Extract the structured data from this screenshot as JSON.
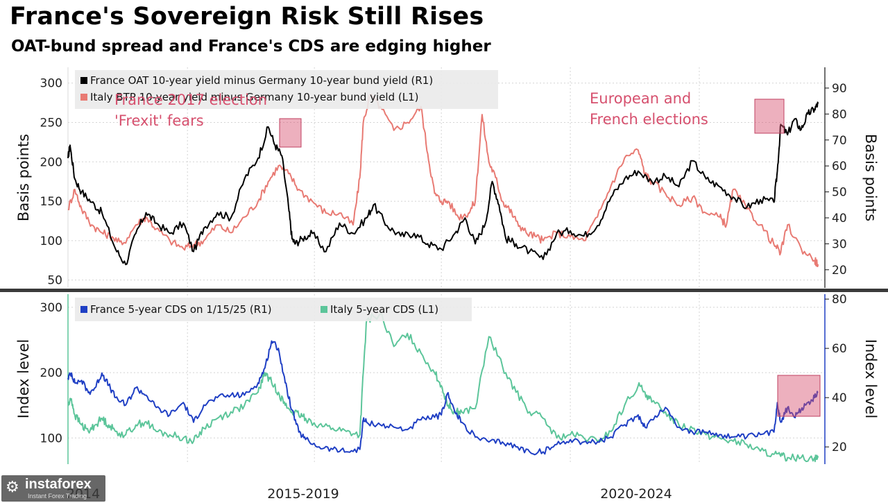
{
  "header": {
    "title": "France's Sovereign Risk Still Rises",
    "subtitle": "OAT-bund spread and France's CDS are edging higher"
  },
  "watermark": {
    "brand": "instaforex",
    "tagline": "Instant Forex Trading"
  },
  "chart_data": [
    {
      "type": "line",
      "panel": "top",
      "left_axis": {
        "label": "Basis points",
        "range": [
          40,
          320
        ],
        "ticks": [
          50,
          100,
          150,
          200,
          250,
          300
        ]
      },
      "right_axis": {
        "label": "Basis points",
        "range": [
          13,
          98
        ],
        "ticks": [
          20,
          30,
          40,
          50,
          60,
          70,
          80,
          90
        ]
      },
      "legend": [
        {
          "text": "France OAT 10-year yield minus Germany 10-year bund yield (R1)",
          "color": "#000000"
        },
        {
          "text": "Italy BTP 10-year yield minus Germany 10-year bund yield (L1)",
          "color": "#e87a73"
        }
      ],
      "annotations": [
        {
          "lines": [
            "France 2017 election",
            "'Frexit' fears"
          ],
          "color": "#d6506e"
        },
        {
          "lines": [
            "European and",
            "French elections"
          ],
          "color": "#d6506e"
        }
      ],
      "series": [
        {
          "name": "France OAT 10-year yield minus Germany 10-year bund yield (R1)",
          "axis": "right",
          "color": "#000000",
          "x": [
            2014.0,
            2014.03,
            2014.1,
            2014.2,
            2014.35,
            2014.5,
            2014.7,
            2014.85,
            2015.0,
            2015.15,
            2015.3,
            2015.5,
            2015.7,
            2015.85,
            2016.0,
            2016.2,
            2016.4,
            2016.6,
            2016.8,
            2016.95,
            2017.05,
            2017.15,
            2017.25,
            2017.3,
            2017.35,
            2017.45,
            2017.6,
            2017.8,
            2018.0,
            2018.2,
            2018.4,
            2018.5,
            2018.7,
            2018.9,
            2019.1,
            2019.3,
            2019.5,
            2019.7,
            2019.85,
            2020.0,
            2020.15,
            2020.25,
            2020.35,
            2020.45,
            2020.6,
            2020.8,
            2021.0,
            2021.2,
            2021.4,
            2021.6,
            2021.8,
            2022.0,
            2022.2,
            2022.4,
            2022.6,
            2022.8,
            2023.0,
            2023.2,
            2023.4,
            2023.6,
            2023.8,
            2024.0,
            2024.2,
            2024.4,
            2024.45,
            2024.5,
            2024.6,
            2024.7,
            2024.8,
            2024.9,
            2025.0,
            2025.05
          ],
          "y": [
            63,
            68,
            55,
            50,
            46,
            42,
            28,
            22,
            34,
            42,
            38,
            34,
            38,
            27,
            36,
            42,
            40,
            55,
            63,
            75,
            68,
            64,
            44,
            32,
            30,
            32,
            34,
            27,
            38,
            34,
            40,
            45,
            37,
            33,
            34,
            30,
            28,
            34,
            40,
            30,
            38,
            54,
            45,
            32,
            30,
            27,
            24,
            34,
            35,
            33,
            37,
            48,
            55,
            58,
            54,
            56,
            52,
            62,
            55,
            52,
            48,
            44,
            47,
            46,
            58,
            76,
            72,
            78,
            74,
            80,
            82,
            84
          ]
        },
        {
          "name": "Italy BTP 10-year yield minus Germany 10-year bund yield (L1)",
          "axis": "left",
          "color": "#e87a73",
          "x": [
            2014.0,
            2014.1,
            2014.2,
            2014.35,
            2014.5,
            2014.65,
            2014.8,
            2015.0,
            2015.15,
            2015.3,
            2015.5,
            2015.7,
            2015.85,
            2016.0,
            2016.2,
            2016.4,
            2016.6,
            2016.8,
            2016.95,
            2017.1,
            2017.25,
            2017.4,
            2017.6,
            2017.8,
            2018.0,
            2018.2,
            2018.3,
            2018.35,
            2018.45,
            2018.6,
            2018.8,
            2019.0,
            2019.2,
            2019.3,
            2019.4,
            2019.5,
            2019.6,
            2019.75,
            2019.9,
            2020.0,
            2020.1,
            2020.2,
            2020.3,
            2020.4,
            2020.5,
            2020.6,
            2020.75,
            2020.9,
            2021.0,
            2021.2,
            2021.4,
            2021.6,
            2021.8,
            2022.0,
            2022.2,
            2022.4,
            2022.5,
            2022.6,
            2022.8,
            2023.0,
            2023.2,
            2023.4,
            2023.6,
            2023.7,
            2023.8,
            2024.0,
            2024.2,
            2024.4,
            2024.5,
            2024.6,
            2024.8,
            2025.0,
            2025.05
          ],
          "y": [
            140,
            165,
            140,
            120,
            110,
            105,
            95,
            120,
            130,
            115,
            100,
            90,
            95,
            100,
            120,
            110,
            130,
            150,
            175,
            195,
            185,
            165,
            150,
            135,
            135,
            120,
            180,
            250,
            285,
            270,
            240,
            250,
            270,
            210,
            160,
            150,
            150,
            130,
            135,
            150,
            260,
            200,
            180,
            150,
            140,
            125,
            110,
            105,
            100,
            110,
            105,
            100,
            130,
            170,
            205,
            215,
            185,
            175,
            160,
            145,
            155,
            135,
            130,
            120,
            165,
            140,
            120,
            95,
            85,
            120,
            90,
            75,
            70
          ]
        }
      ]
    },
    {
      "type": "line",
      "panel": "bottom",
      "left_axis": {
        "label": "Index level",
        "range": [
          60,
          320
        ],
        "ticks": [
          100,
          200,
          300
        ]
      },
      "right_axis": {
        "label": "Index level",
        "range": [
          13,
          82
        ],
        "ticks": [
          20,
          40,
          60,
          80
        ]
      },
      "x_axis": {
        "labels": [
          "2014",
          "2015-2019",
          "2020-2024"
        ]
      },
      "legend": [
        {
          "text": "France 5-year CDS on 1/15/25 (R1)",
          "color": "#1f3fc4"
        },
        {
          "text": "Italy 5-year CDS (L1)",
          "color": "#5cc59a"
        }
      ],
      "series": [
        {
          "name": "France 5-year CDS on 1/15/25 (R1)",
          "axis": "right",
          "color": "#1f3fc4",
          "x": [
            2014.0,
            2014.05,
            2014.1,
            2014.2,
            2014.3,
            2014.4,
            2014.5,
            2014.6,
            2014.7,
            2014.85,
            2015.0,
            2015.15,
            2015.3,
            2015.5,
            2015.7,
            2015.85,
            2016.0,
            2016.2,
            2016.4,
            2016.6,
            2016.8,
            2016.9,
            2017.0,
            2017.1,
            2017.2,
            2017.3,
            2017.4,
            2017.5,
            2017.7,
            2017.9,
            2018.1,
            2018.3,
            2018.35,
            2018.4,
            2018.6,
            2018.8,
            2019.0,
            2019.2,
            2019.4,
            2019.5,
            2019.6,
            2019.7,
            2019.8,
            2020.0,
            2020.2,
            2020.4,
            2020.6,
            2020.8,
            2021.0,
            2021.2,
            2021.4,
            2021.6,
            2021.8,
            2022.0,
            2022.2,
            2022.4,
            2022.5,
            2022.6,
            2022.8,
            2023.0,
            2023.2,
            2023.4,
            2023.6,
            2023.8,
            2024.0,
            2024.2,
            2024.4,
            2024.45,
            2024.5,
            2024.6,
            2024.7,
            2024.8,
            2024.9,
            2025.0,
            2025.05
          ],
          "y": [
            48,
            50,
            46,
            47,
            42,
            44,
            50,
            45,
            40,
            37,
            44,
            41,
            36,
            33,
            38,
            30,
            37,
            40,
            41,
            41,
            46,
            52,
            63,
            60,
            46,
            35,
            26,
            23,
            20,
            19,
            18,
            19,
            31,
            30,
            29,
            28,
            27,
            31,
            32,
            33,
            42,
            34,
            30,
            24,
            22,
            22,
            20,
            18,
            18,
            21,
            23,
            22,
            22,
            24,
            29,
            33,
            28,
            31,
            36,
            28,
            26,
            26,
            25,
            24,
            24,
            25,
            26,
            38,
            30,
            36,
            32,
            35,
            38,
            40,
            42
          ]
        },
        {
          "name": "Italy 5-year CDS (L1)",
          "axis": "left",
          "color": "#5cc59a",
          "x": [
            2014.0,
            2014.05,
            2014.1,
            2014.2,
            2014.3,
            2014.4,
            2014.5,
            2014.6,
            2014.7,
            2014.85,
            2015.0,
            2015.15,
            2015.3,
            2015.5,
            2015.7,
            2015.85,
            2016.0,
            2016.2,
            2016.4,
            2016.6,
            2016.8,
            2016.9,
            2017.0,
            2017.1,
            2017.2,
            2017.3,
            2017.4,
            2017.5,
            2017.7,
            2017.9,
            2018.1,
            2018.3,
            2018.35,
            2018.4,
            2018.6,
            2018.8,
            2019.0,
            2019.2,
            2019.4,
            2019.5,
            2019.6,
            2019.7,
            2019.8,
            2020.0,
            2020.2,
            2020.4,
            2020.6,
            2020.8,
            2021.0,
            2021.2,
            2021.4,
            2021.6,
            2021.8,
            2022.0,
            2022.2,
            2022.4,
            2022.5,
            2022.6,
            2022.8,
            2023.0,
            2023.2,
            2023.4,
            2023.6,
            2023.8,
            2024.0,
            2024.2,
            2024.4,
            2024.5,
            2024.6,
            2024.8,
            2025.0,
            2025.05
          ],
          "y": [
            150,
            160,
            135,
            120,
            110,
            120,
            130,
            120,
            110,
            105,
            120,
            125,
            110,
            105,
            100,
            95,
            115,
            130,
            140,
            150,
            170,
            200,
            185,
            170,
            150,
            140,
            135,
            130,
            120,
            115,
            110,
            105,
            200,
            280,
            290,
            240,
            260,
            230,
            200,
            180,
            150,
            140,
            140,
            145,
            255,
            210,
            170,
            140,
            130,
            100,
            105,
            100,
            95,
            110,
            150,
            180,
            170,
            155,
            140,
            120,
            115,
            105,
            100,
            95,
            90,
            80,
            75,
            72,
            70,
            70,
            70,
            70
          ]
        }
      ]
    }
  ]
}
